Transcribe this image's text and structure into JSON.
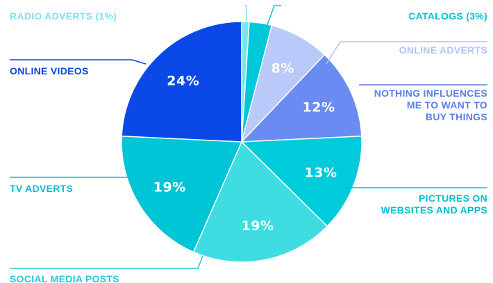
{
  "chart_data": {
    "type": "pie",
    "title": "",
    "slices": [
      {
        "label": [
          "RADIO ADVERTS (1%)"
        ],
        "value": 1,
        "pct_label": "",
        "color": "#7ce3ea",
        "label_color": "#7ce3ea"
      },
      {
        "label": [
          "CATALOGS (3%)"
        ],
        "value": 3,
        "pct_label": "",
        "color": "#00c8d8",
        "label_color": "#00c3d3"
      },
      {
        "label": [
          "ONLINE ADVERTS"
        ],
        "value": 8,
        "pct_label": "8%",
        "color": "#b9c9f9",
        "label_color": "#b3c3f3"
      },
      {
        "label": [
          "NOTHING INFLUENCES",
          "ME TO WANT TO",
          "BUY THINGS"
        ],
        "value": 12,
        "pct_label": "12%",
        "color": "#6a8bf1",
        "label_color": "#5b7ee9"
      },
      {
        "label": [
          "PICTURES ON",
          "WEBSITES AND APPS"
        ],
        "value": 13,
        "pct_label": "13%",
        "color": "#00cbdb",
        "label_color": "#00bfd0"
      },
      {
        "label": [
          "SOCIAL MEDIA POSTS"
        ],
        "value": 19,
        "pct_label": "19%",
        "color": "#3fdde2",
        "label_color": "#1fcad8"
      },
      {
        "label": [
          "TV ADVERTS"
        ],
        "value": 19,
        "pct_label": "19%",
        "color": "#00c5d7",
        "label_color": "#00bfd0"
      },
      {
        "label": [
          "ONLINE VIDEOS"
        ],
        "value": 24,
        "pct_label": "24%",
        "color": "#0a49e8",
        "label_color": "#0a44d8"
      }
    ]
  }
}
